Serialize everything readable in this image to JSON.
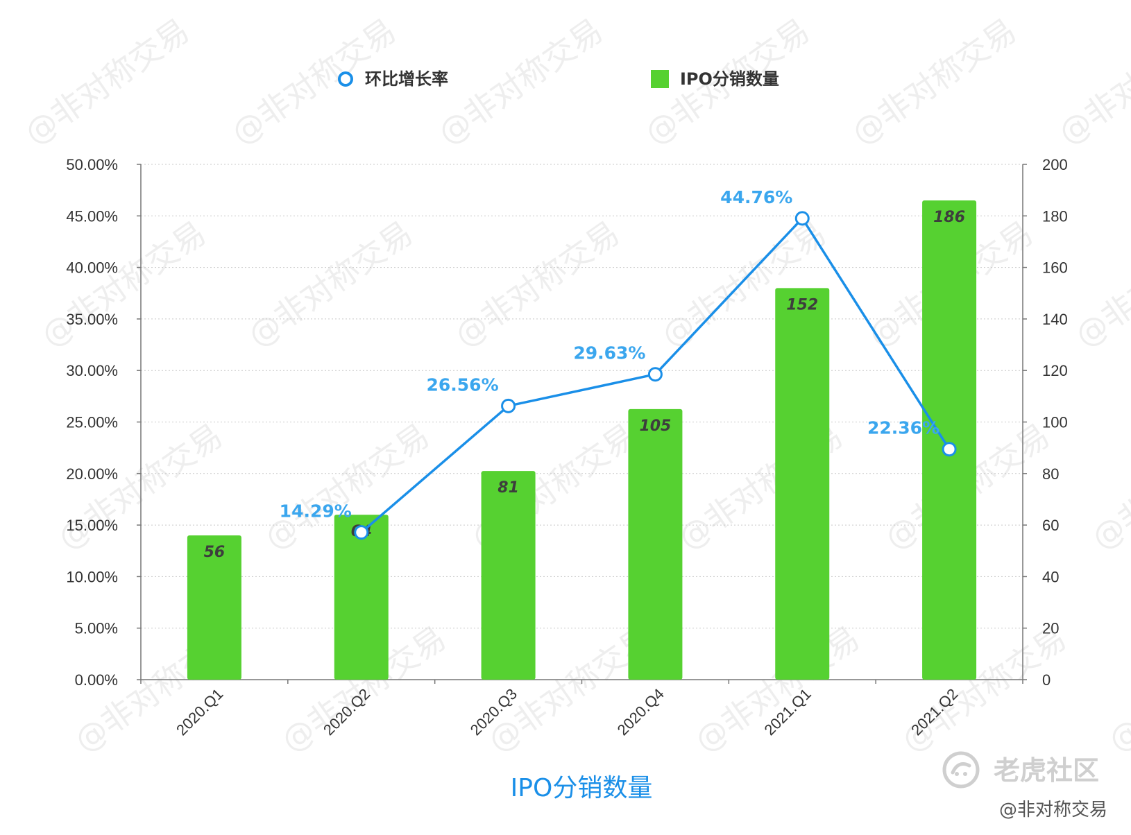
{
  "chart_data": {
    "type": "bar",
    "categories": [
      "2020.Q1",
      "2020.Q2",
      "2020.Q3",
      "2020.Q4",
      "2021.Q1",
      "2021.Q2"
    ],
    "series": [
      {
        "name": "IPO分销数量",
        "type": "bar",
        "axis": "right",
        "values": [
          56,
          64,
          81,
          105,
          152,
          186
        ],
        "labels": [
          "56",
          "64",
          "81",
          "105",
          "152",
          "186"
        ],
        "color": "#56d131"
      },
      {
        "name": "环比增长率",
        "type": "line",
        "axis": "left",
        "values": [
          14.29,
          26.56,
          29.63,
          44.76,
          22.36
        ],
        "x": [
          "2020.Q2",
          "2020.Q3",
          "2020.Q4",
          "2021.Q1",
          "2021.Q2"
        ],
        "labels": [
          "14.29%",
          "26.56%",
          "29.63%",
          "44.76%",
          "22.36%"
        ],
        "color": "#1a8fe8",
        "label_color": "#3aa6ee"
      }
    ],
    "y_left": {
      "ylim": [
        0,
        50
      ],
      "tick_labels": [
        "0.00%",
        "5.00%",
        "10.00%",
        "15.00%",
        "20.00%",
        "25.00%",
        "30.00%",
        "35.00%",
        "40.00%",
        "45.00%",
        "50.00%"
      ]
    },
    "y_right": {
      "ylim": [
        0,
        200
      ],
      "tick_labels": [
        "0",
        "20",
        "40",
        "60",
        "80",
        "100",
        "120",
        "140",
        "160",
        "180",
        "200"
      ]
    },
    "xlabel": "IPO分销数量",
    "legend": {
      "placement": "top-center",
      "items": [
        {
          "label": "环比增长率",
          "marker": "circle-icon",
          "color": "#1a8fe8"
        },
        {
          "label": "IPO分销数量",
          "marker": "square-icon",
          "color": "#56d131"
        }
      ]
    },
    "grid": true
  },
  "watermark": {
    "text": "@非对称交易"
  },
  "branding": {
    "logo_text": "老虎社区",
    "logo_icon": "tiger-logo-icon",
    "handle": "@非对称交易"
  }
}
